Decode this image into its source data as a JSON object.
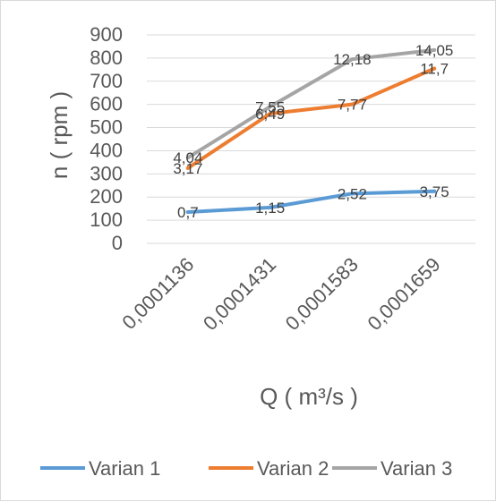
{
  "chart_data": {
    "type": "line",
    "title": "",
    "xlabel": "Q ( m³/s )",
    "ylabel": "n ( rpm )",
    "categories": [
      "0,0001136",
      "0,0001431",
      "0,0001583",
      "0,0001659"
    ],
    "ylim": [
      0,
      900
    ],
    "yticks": [
      "0",
      "100",
      "200",
      "300",
      "400",
      "500",
      "600",
      "700",
      "800",
      "900"
    ],
    "grid": true,
    "legend_position": "bottom",
    "series": [
      {
        "name": "Varian 1",
        "color": "#5b9bd5",
        "values": [
          135,
          155,
          215,
          225
        ],
        "labels": [
          "0,7",
          "1,15",
          "2,52",
          "3,75"
        ]
      },
      {
        "name": "Varian 2",
        "color": "#ed7d31",
        "values": [
          325,
          560,
          600,
          755
        ],
        "labels": [
          "3,17",
          "6,49",
          "7,77",
          "11,7"
        ]
      },
      {
        "name": "Varian 3",
        "color": "#a5a5a5",
        "values": [
          370,
          590,
          795,
          835
        ],
        "labels": [
          "4,04",
          "7,55",
          "12,18",
          "14,05"
        ]
      }
    ]
  }
}
